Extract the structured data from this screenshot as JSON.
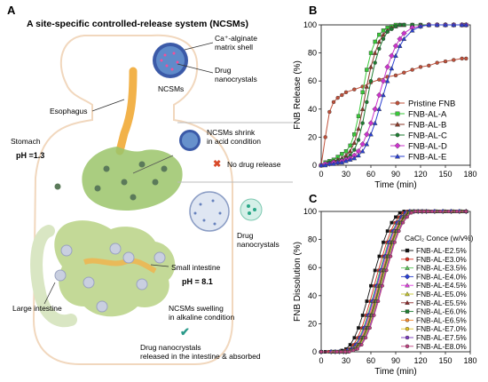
{
  "panel_letters": {
    "a": "A",
    "b": "B",
    "c": "C"
  },
  "schematic": {
    "title": "A site-specific controlled-release system (NCSMs)",
    "shell_label": "Ca⁺-alginate\nmatrix shell",
    "drug_label": "Drug\nnanocrystals",
    "ncsms_label": "NCSMs",
    "esophagus": "Esophagus",
    "stomach": "Stomach",
    "stomach_ph": "pH =1.3",
    "shrink_text": "NCSMs shrink\nin acid condition",
    "no_release": "No drug release",
    "drug_nano_right": "Drug\nnanocrystals",
    "small_intestine": "Small intestine",
    "intestine_ph": "pH = 8.1",
    "swell_text": "NCSMs swelling\nin alkaline condition",
    "released_text": "Drug nanocrystals\nreleased in the intestine & absorbed",
    "large_intestine": "Large intestine",
    "colors": {
      "stomach": "#9bc46a",
      "esophagus": "#f2b24a",
      "intestine": "#b4cf7d",
      "large": "#d9e6c3",
      "sphere": "#3b5aa8"
    }
  },
  "chart_data": [
    {
      "type": "line",
      "panel": "B",
      "xlabel": "Time (min)",
      "ylabel": "FNB Release (%)",
      "xlim": [
        0,
        180
      ],
      "ylim": [
        0,
        100
      ],
      "xticks": [
        0,
        30,
        60,
        90,
        120,
        150,
        180
      ],
      "yticks": [
        0,
        20,
        40,
        60,
        80,
        100
      ],
      "legend_position": "bottom-right",
      "series": [
        {
          "name": "Pristine FNB",
          "color": "#c0503a",
          "marker": "circle",
          "x": [
            0,
            5,
            10,
            15,
            20,
            25,
            30,
            40,
            50,
            60,
            70,
            80,
            90,
            100,
            110,
            120,
            130,
            140,
            150,
            160,
            170,
            175
          ],
          "y": [
            0,
            20,
            38,
            45,
            48,
            50,
            52,
            54,
            56,
            59,
            61,
            63,
            64,
            66,
            68,
            70,
            71,
            73,
            74,
            75,
            76,
            76
          ]
        },
        {
          "name": "FNB-AL-A",
          "color": "#39c839",
          "marker": "square",
          "x": [
            0,
            5,
            10,
            15,
            20,
            25,
            30,
            35,
            40,
            45,
            50,
            55,
            60,
            65,
            70,
            75,
            80,
            85,
            90,
            95,
            100,
            110,
            120,
            130,
            140,
            150,
            160,
            170,
            175
          ],
          "y": [
            0,
            2,
            3,
            4,
            6,
            8,
            10,
            14,
            22,
            35,
            52,
            68,
            80,
            88,
            93,
            96,
            98,
            99,
            100,
            100,
            100,
            100,
            100,
            100,
            100,
            100,
            100,
            100,
            100
          ]
        },
        {
          "name": "FNB-AL-B",
          "color": "#8b3a2a",
          "marker": "triangle",
          "x": [
            0,
            5,
            10,
            15,
            20,
            25,
            30,
            35,
            40,
            45,
            50,
            55,
            60,
            65,
            70,
            75,
            80,
            85,
            90,
            95,
            100,
            110,
            120,
            130,
            140,
            150,
            160,
            170,
            175
          ],
          "y": [
            0,
            1,
            2,
            3,
            4,
            5,
            7,
            10,
            16,
            26,
            40,
            56,
            70,
            80,
            88,
            93,
            96,
            98,
            99,
            100,
            100,
            100,
            100,
            100,
            100,
            100,
            100,
            100,
            100
          ]
        },
        {
          "name": "FNB-AL-C",
          "color": "#1e7d32",
          "marker": "circle",
          "x": [
            0,
            5,
            10,
            15,
            20,
            25,
            30,
            35,
            40,
            45,
            50,
            55,
            60,
            65,
            70,
            75,
            80,
            85,
            90,
            95,
            100,
            110,
            120,
            130,
            140,
            150,
            160,
            170,
            175
          ],
          "y": [
            0,
            1,
            2,
            2,
            3,
            4,
            5,
            7,
            11,
            18,
            30,
            45,
            60,
            73,
            83,
            90,
            95,
            97,
            99,
            100,
            100,
            100,
            100,
            100,
            100,
            100,
            100,
            100,
            100
          ]
        },
        {
          "name": "FNB-AL-D",
          "color": "#cc33cc",
          "marker": "diamond",
          "x": [
            0,
            5,
            10,
            15,
            20,
            25,
            30,
            35,
            40,
            45,
            50,
            55,
            60,
            65,
            70,
            75,
            80,
            85,
            90,
            95,
            100,
            110,
            120,
            130,
            140,
            150,
            160,
            170,
            175
          ],
          "y": [
            0,
            1,
            1,
            2,
            2,
            3,
            4,
            5,
            7,
            10,
            15,
            22,
            30,
            40,
            50,
            60,
            70,
            78,
            85,
            90,
            94,
            98,
            99,
            100,
            100,
            100,
            100,
            100,
            100
          ]
        },
        {
          "name": "FNB-AL-E",
          "color": "#2a3fd0",
          "marker": "triangle",
          "x": [
            0,
            5,
            10,
            15,
            20,
            25,
            30,
            35,
            40,
            45,
            50,
            55,
            60,
            65,
            70,
            75,
            80,
            85,
            90,
            95,
            100,
            110,
            120,
            130,
            140,
            150,
            160,
            170,
            175
          ],
          "y": [
            0,
            0,
            1,
            1,
            2,
            2,
            3,
            4,
            5,
            7,
            10,
            15,
            22,
            30,
            40,
            50,
            60,
            69,
            78,
            85,
            90,
            96,
            99,
            100,
            100,
            100,
            100,
            100,
            100
          ]
        }
      ]
    },
    {
      "type": "line",
      "panel": "C",
      "xlabel": "Time (min)",
      "ylabel": "FNB Dissolution (%)",
      "xlim": [
        0,
        180
      ],
      "ylim": [
        0,
        100
      ],
      "xticks": [
        0,
        30,
        60,
        90,
        120,
        150,
        180
      ],
      "yticks": [
        0,
        20,
        40,
        60,
        80,
        100
      ],
      "legend_title": "CaCl₂ Conce (w/v%)",
      "legend_position": "right",
      "series": [
        {
          "name": "FNB-AL-E2.5%",
          "color": "#111111",
          "marker": "square",
          "shift": 0
        },
        {
          "name": "FNB-AL-E3.0%",
          "color": "#e03020",
          "marker": "circle",
          "shift": 4
        },
        {
          "name": "FNB-AL-E3.5%",
          "color": "#5cc85c",
          "marker": "triangle",
          "shift": 6
        },
        {
          "name": "FNB-AL-E4.0%",
          "color": "#2a3fd0",
          "marker": "diamond",
          "shift": 7
        },
        {
          "name": "FNB-AL-E4.5%",
          "color": "#e040e0",
          "marker": "triangle",
          "shift": 8
        },
        {
          "name": "FNB-AL-E5.0%",
          "color": "#c8c830",
          "marker": "triangle",
          "shift": 9
        },
        {
          "name": "FNB-AL-E5.5%",
          "color": "#8b2a2a",
          "marker": "triangle",
          "shift": 10
        },
        {
          "name": "FNB-AL-E6.0%",
          "color": "#1e7d32",
          "marker": "square",
          "shift": 11
        },
        {
          "name": "FNB-AL-E6.5%",
          "color": "#f28a30",
          "marker": "circle",
          "shift": 12
        },
        {
          "name": "FNB-AL-E7.0%",
          "color": "#e0c020",
          "marker": "circle",
          "shift": 12
        },
        {
          "name": "FNB-AL-E7.5%",
          "color": "#7a3ac0",
          "marker": "circle",
          "shift": 13
        },
        {
          "name": "FNB-AL-E8.0%",
          "color": "#c04080",
          "marker": "circle",
          "shift": 14
        }
      ],
      "base_curve": {
        "x": [
          0,
          5,
          10,
          15,
          20,
          25,
          30,
          35,
          40,
          45,
          50,
          55,
          60,
          65,
          70,
          75,
          80,
          85,
          90,
          95,
          100,
          105,
          110,
          115,
          120,
          130,
          140,
          150,
          160,
          170,
          175
        ],
        "y": [
          0,
          0,
          0,
          0,
          0,
          1,
          2,
          5,
          10,
          17,
          26,
          36,
          47,
          58,
          68,
          78,
          86,
          92,
          96,
          99,
          100,
          100,
          100,
          100,
          100,
          100,
          100,
          100,
          100,
          100,
          100
        ]
      }
    }
  ]
}
